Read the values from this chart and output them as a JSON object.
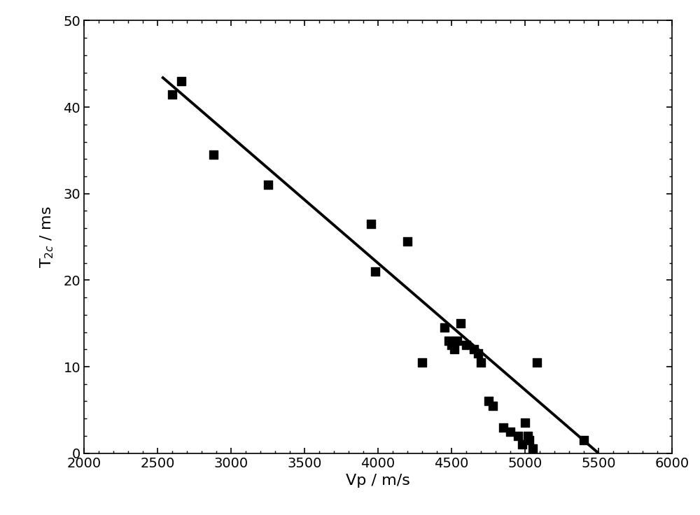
{
  "scatter_x": [
    2600,
    2660,
    2880,
    3250,
    3950,
    3980,
    4200,
    4300,
    4450,
    4480,
    4500,
    4520,
    4540,
    4560,
    4600,
    4650,
    4680,
    4700,
    4750,
    4780,
    4850,
    4900,
    4950,
    4980,
    5000,
    5020,
    5030,
    5050,
    5080,
    5400
  ],
  "scatter_y": [
    41.5,
    43.0,
    34.5,
    31.0,
    26.5,
    21.0,
    24.5,
    10.5,
    14.5,
    13.0,
    12.5,
    12.0,
    13.0,
    15.0,
    12.5,
    12.0,
    11.5,
    10.5,
    6.0,
    5.5,
    3.0,
    2.5,
    2.0,
    1.0,
    3.5,
    2.0,
    1.5,
    0.5,
    10.5,
    1.5
  ],
  "line_x": [
    2530,
    5500
  ],
  "line_y": [
    43.5,
    0.0
  ],
  "xlabel": "Vp / m/s",
  "ylabel": "T$_{2c}$ / ms",
  "xlim": [
    2000,
    6000
  ],
  "ylim": [
    0,
    50
  ],
  "xticks": [
    2000,
    2500,
    3000,
    3500,
    4000,
    4500,
    5000,
    5500,
    6000
  ],
  "yticks": [
    0,
    10,
    20,
    30,
    40,
    50
  ],
  "marker_color": "#000000",
  "line_color": "#000000",
  "line_width": 2.8,
  "marker_size": 65,
  "background_color": "#ffffff",
  "tick_fontsize": 14,
  "label_fontsize": 16
}
